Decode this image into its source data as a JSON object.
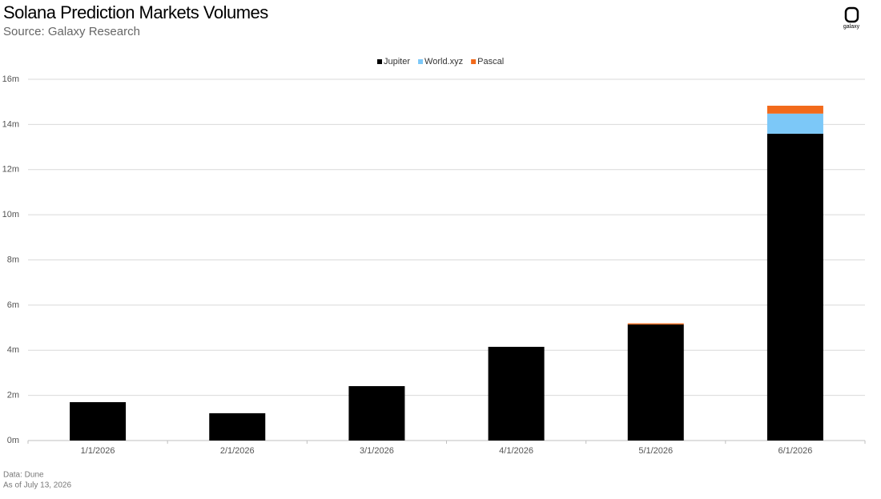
{
  "chart_data": {
    "type": "stacked-bar",
    "title": "Solana Prediction Markets Volumes",
    "subtitle": "Source: Galaxy Research",
    "brand": "galaxy",
    "footnotes": [
      "Data: Dune",
      "As of July 13, 2026"
    ],
    "categories": [
      "1/1/2026",
      "2/1/2026",
      "3/1/2026",
      "4/1/2026",
      "5/1/2026",
      "6/1/2026"
    ],
    "series": [
      {
        "name": "Jupiter",
        "color": "#000000",
        "values": [
          1.7,
          1.21,
          2.41,
          4.15,
          5.14,
          13.59
        ]
      },
      {
        "name": "World.xyz",
        "color": "#7cc8f8",
        "values": [
          0,
          0,
          0,
          0,
          0,
          0.89
        ]
      },
      {
        "name": "Pascal",
        "color": "#f26a1b",
        "values": [
          0,
          0,
          0,
          0,
          0.05,
          0.35
        ]
      }
    ],
    "ylim": [
      0,
      16
    ],
    "yticks": [
      {
        "value": 0,
        "label": "0m"
      },
      {
        "value": 2,
        "label": "2m"
      },
      {
        "value": 4,
        "label": "4m"
      },
      {
        "value": 6,
        "label": "6m"
      },
      {
        "value": 8,
        "label": "8m"
      },
      {
        "value": 10,
        "label": "10m"
      },
      {
        "value": 12,
        "label": "12m"
      },
      {
        "value": 14,
        "label": "14m"
      },
      {
        "value": 16,
        "label": "16m"
      }
    ],
    "grid": true,
    "legend": "top"
  }
}
